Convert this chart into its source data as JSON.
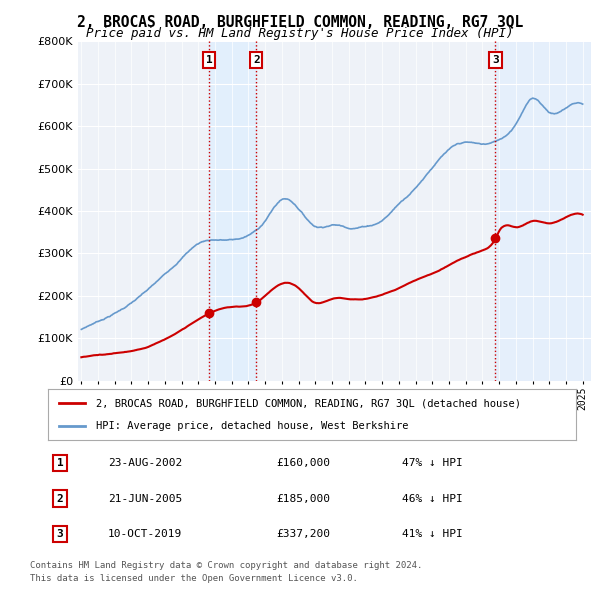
{
  "title": "2, BROCAS ROAD, BURGHFIELD COMMON, READING, RG7 3QL",
  "subtitle": "Price paid vs. HM Land Registry's House Price Index (HPI)",
  "ylim": [
    0,
    800000
  ],
  "yticks": [
    0,
    100000,
    200000,
    300000,
    400000,
    500000,
    600000,
    700000,
    800000
  ],
  "sale_color": "#cc0000",
  "hpi_color": "#6699cc",
  "hpi_fill_color": "#ddeeff",
  "sale_label": "2, BROCAS ROAD, BURGHFIELD COMMON, READING, RG7 3QL (detached house)",
  "hpi_label": "HPI: Average price, detached house, West Berkshire",
  "vline_color": "#cc0000",
  "shade_color": "#ddeeff",
  "transactions": [
    {
      "id": 1,
      "date": "23-AUG-2002",
      "price": 160000,
      "pct": "47%",
      "dir": "↓",
      "x": 2002.65
    },
    {
      "id": 2,
      "date": "21-JUN-2005",
      "price": 185000,
      "pct": "46%",
      "dir": "↓",
      "x": 2005.47
    },
    {
      "id": 3,
      "date": "10-OCT-2019",
      "price": 337200,
      "pct": "41%",
      "dir": "↓",
      "x": 2019.78
    }
  ],
  "footer1": "Contains HM Land Registry data © Crown copyright and database right 2024.",
  "footer2": "This data is licensed under the Open Government Licence v3.0.",
  "background_color": "#ffffff",
  "plot_bg_color": "#eef2f8",
  "xlim_left": 1994.8,
  "xlim_right": 2025.5
}
